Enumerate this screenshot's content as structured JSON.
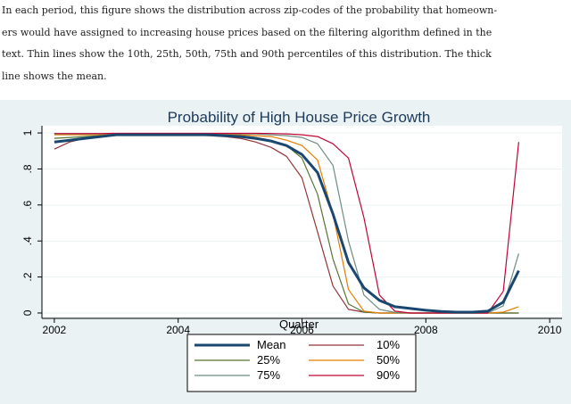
{
  "caption": {
    "lines": [
      "In each period, this figure shows the distribution across zip-codes of the probability that homeown-",
      "ers would have assigned to increasing house prices based on the filtering algorithm defined in the",
      "text.  Thin lines show the 10th, 25th, 50th, 75th and 90th percentiles of this distribution.  The thick",
      "line shows the mean."
    ]
  },
  "chart_data": {
    "type": "line",
    "title": "Probability of High House Price Growth",
    "xlabel": "Quarter",
    "ylabel": "",
    "xlim": [
      2001.8,
      2010.2
    ],
    "ylim": [
      -0.02,
      1.04
    ],
    "xticks": [
      2002,
      2004,
      2006,
      2008,
      2010
    ],
    "xtick_labels": [
      "2002",
      "2004",
      "2006",
      "2008",
      "2010"
    ],
    "yticks": [
      0,
      0.2,
      0.4,
      0.6,
      0.8,
      1
    ],
    "ytick_labels": [
      "0",
      ".2",
      ".4",
      ".6",
      ".8",
      "1"
    ],
    "grid": true,
    "legend_position": "bottom",
    "x": [
      2002.0,
      2002.25,
      2002.5,
      2002.75,
      2003.0,
      2003.25,
      2003.5,
      2003.75,
      2004.0,
      2004.25,
      2004.5,
      2004.75,
      2005.0,
      2005.25,
      2005.5,
      2005.75,
      2006.0,
      2006.25,
      2006.5,
      2006.75,
      2007.0,
      2007.25,
      2007.5,
      2007.75,
      2008.0,
      2008.25,
      2008.5,
      2008.75,
      2009.0,
      2009.25,
      2009.5
    ],
    "series": [
      {
        "name": "Mean",
        "color": "#1a476f",
        "width": 3,
        "values": [
          0.95,
          0.96,
          0.97,
          0.98,
          0.99,
          0.99,
          0.99,
          0.99,
          0.99,
          0.99,
          0.99,
          0.985,
          0.98,
          0.97,
          0.955,
          0.93,
          0.88,
          0.78,
          0.55,
          0.28,
          0.14,
          0.07,
          0.035,
          0.025,
          0.015,
          0.008,
          0.005,
          0.005,
          0.01,
          0.06,
          0.235
        ]
      },
      {
        "name": "10%",
        "color": "#90353b",
        "width": 1.2,
        "values": [
          0.91,
          0.95,
          0.97,
          0.98,
          0.99,
          0.99,
          0.99,
          0.99,
          0.99,
          0.99,
          0.985,
          0.98,
          0.97,
          0.95,
          0.92,
          0.87,
          0.75,
          0.45,
          0.15,
          0.02,
          0.005,
          0.0,
          0.0,
          0.0,
          0.0,
          0.0,
          0.0,
          0.0,
          0.0,
          0.0,
          0.0
        ]
      },
      {
        "name": "25%",
        "color": "#55752f",
        "width": 1.2,
        "values": [
          0.97,
          0.975,
          0.98,
          0.985,
          0.99,
          0.99,
          0.99,
          0.99,
          0.99,
          0.99,
          0.99,
          0.99,
          0.985,
          0.975,
          0.96,
          0.93,
          0.86,
          0.66,
          0.3,
          0.05,
          0.005,
          0.0,
          0.0,
          0.0,
          0.0,
          0.0,
          0.0,
          0.0,
          0.0,
          0.0,
          0.0
        ]
      },
      {
        "name": "50%",
        "color": "#e37e00",
        "width": 1.2,
        "values": [
          0.99,
          0.99,
          0.99,
          0.99,
          0.995,
          0.995,
          0.995,
          0.995,
          0.995,
          0.995,
          0.995,
          0.995,
          0.99,
          0.985,
          0.98,
          0.96,
          0.93,
          0.85,
          0.55,
          0.13,
          0.01,
          0.0,
          0.0,
          0.0,
          0.0,
          0.0,
          0.0,
          0.0,
          0.0,
          0.005,
          0.035
        ]
      },
      {
        "name": "75%",
        "color": "#6e8e84",
        "width": 1.2,
        "values": [
          0.995,
          0.995,
          0.995,
          0.995,
          0.997,
          0.997,
          0.997,
          0.997,
          0.997,
          0.997,
          0.997,
          0.997,
          0.995,
          0.995,
          0.99,
          0.985,
          0.975,
          0.94,
          0.82,
          0.4,
          0.1,
          0.02,
          0.003,
          0.0,
          0.0,
          0.0,
          0.0,
          0.0,
          0.0,
          0.04,
          0.33
        ]
      },
      {
        "name": "90%",
        "color": "#c10534",
        "width": 1.2,
        "values": [
          0.997,
          0.997,
          0.997,
          0.997,
          0.998,
          0.998,
          0.998,
          0.998,
          0.998,
          0.998,
          0.998,
          0.998,
          0.998,
          0.998,
          0.997,
          0.995,
          0.99,
          0.98,
          0.94,
          0.86,
          0.53,
          0.1,
          0.01,
          0.0,
          0.0,
          0.0,
          0.0,
          0.0,
          0.0,
          0.12,
          0.95
        ]
      }
    ],
    "legend_order": [
      "Mean",
      "10%",
      "25%",
      "50%",
      "75%",
      "90%"
    ]
  }
}
